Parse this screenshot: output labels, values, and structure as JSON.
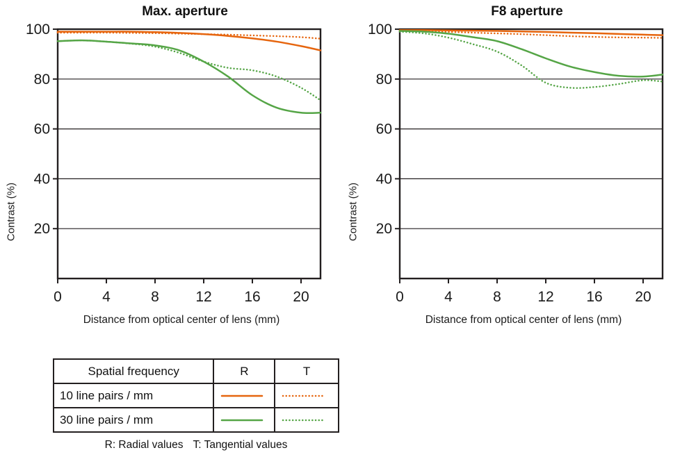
{
  "colors": {
    "orange": "#e6650e",
    "green": "#55a546",
    "frame": "#231f20",
    "text": "#1a1a1a"
  },
  "chart_data": [
    {
      "type": "line",
      "title": "Max. aperture",
      "xlabel": "Distance from optical center of lens (mm)",
      "ylabel": "Contrast (%)",
      "xlim": [
        0,
        21.6
      ],
      "ylim": [
        0,
        100
      ],
      "xticks": [
        0,
        4,
        8,
        12,
        16,
        20
      ],
      "yticks": [
        20,
        40,
        60,
        80,
        100
      ],
      "grid": "horizontal",
      "legend_position": "none",
      "x": [
        0,
        2,
        4,
        6,
        8,
        10,
        12,
        14,
        16,
        18,
        20,
        21.6
      ],
      "series": [
        {
          "name": "10 line pairs / mm R (radial)",
          "color": "#e6650e",
          "style": "solid",
          "values": [
            99,
            99,
            99,
            99,
            98.8,
            98.5,
            98,
            97.3,
            96.3,
            95,
            93.2,
            91.5
          ]
        },
        {
          "name": "10 line pairs / mm T (tangential)",
          "color": "#e6650e",
          "style": "dotted",
          "values": [
            98.6,
            98.6,
            98.6,
            98.5,
            98.4,
            98.2,
            98,
            97.8,
            97.5,
            97.2,
            96.8,
            96.2
          ]
        },
        {
          "name": "30 line pairs / mm R (radial)",
          "color": "#55a546",
          "style": "solid",
          "values": [
            95.2,
            95.5,
            95,
            94.3,
            93.5,
            91.5,
            87,
            81,
            73.5,
            68.5,
            66.5,
            66.5
          ]
        },
        {
          "name": "30 line pairs / mm T (tangential)",
          "color": "#55a546",
          "style": "dotted",
          "values": [
            95.2,
            95.5,
            95,
            94.2,
            93,
            90.5,
            87,
            84.5,
            83.5,
            81,
            76.5,
            71.5
          ]
        }
      ]
    },
    {
      "type": "line",
      "title": "F8 aperture",
      "xlabel": "Distance from optical center of lens (mm)",
      "ylabel": "Contrast (%)",
      "xlim": [
        0,
        21.6
      ],
      "ylim": [
        0,
        100
      ],
      "xticks": [
        0,
        4,
        8,
        12,
        16,
        20
      ],
      "yticks": [
        20,
        40,
        60,
        80,
        100
      ],
      "grid": "horizontal",
      "legend_position": "none",
      "x": [
        0,
        2,
        4,
        6,
        8,
        10,
        12,
        14,
        16,
        18,
        20,
        21.6
      ],
      "series": [
        {
          "name": "10 line pairs / mm R (radial)",
          "color": "#e6650e",
          "style": "solid",
          "values": [
            99.6,
            99.6,
            99.5,
            99.4,
            99.3,
            99.1,
            98.9,
            98.6,
            98.4,
            98.1,
            97.8,
            97.6
          ]
        },
        {
          "name": "10 line pairs / mm T (tangential)",
          "color": "#e6650e",
          "style": "dotted",
          "values": [
            99.2,
            99.1,
            98.9,
            98.6,
            98.3,
            98,
            97.6,
            97.2,
            96.9,
            96.7,
            96.6,
            96.5
          ]
        },
        {
          "name": "30 line pairs / mm R (radial)",
          "color": "#55a546",
          "style": "solid",
          "values": [
            99.3,
            99,
            98.2,
            96.8,
            95.2,
            92,
            88.3,
            85,
            82.8,
            81.3,
            81,
            81.8
          ]
        },
        {
          "name": "30 line pairs / mm T (tangential)",
          "color": "#55a546",
          "style": "dotted",
          "values": [
            99,
            98.3,
            96.6,
            94,
            91,
            85.5,
            78.5,
            76.5,
            76.8,
            78,
            79.5,
            79
          ]
        }
      ]
    }
  ],
  "legend": {
    "header": {
      "col1": "Spatial frequency",
      "col2": "R",
      "col3": "T"
    },
    "rows": [
      {
        "label": "10 line pairs / mm",
        "color": "#e6650e"
      },
      {
        "label": "30 line pairs / mm",
        "color": "#55a546"
      }
    ],
    "caption_r": "R: Radial values",
    "caption_t": "T: Tangential values"
  }
}
